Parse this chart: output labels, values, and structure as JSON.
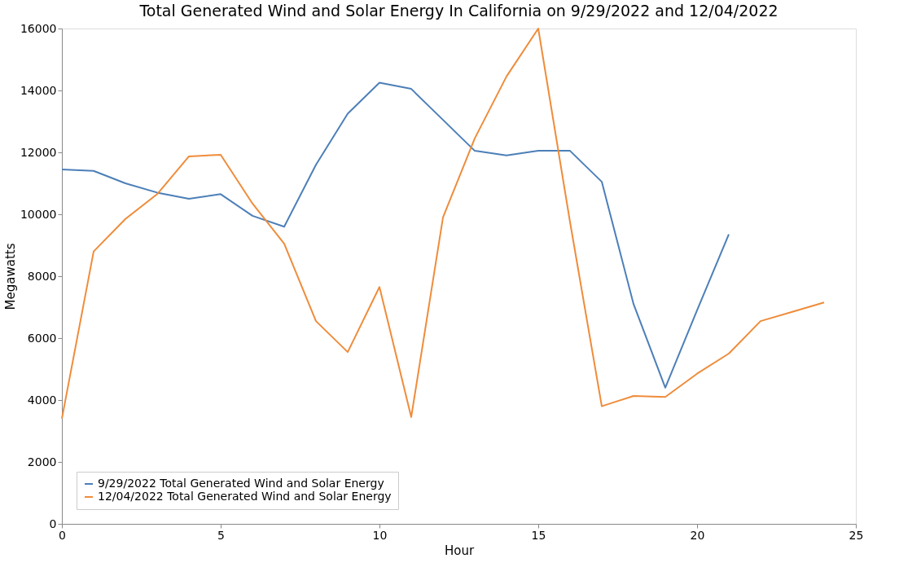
{
  "chart_data": {
    "type": "line",
    "title": "Total Generated Wind and Solar Energy In California on 9/29/2022 and 12/04/2022",
    "xlabel": "Hour",
    "ylabel": "Megawatts",
    "xlim": [
      0,
      25
    ],
    "xticks": [
      0,
      5,
      10,
      15,
      20,
      25
    ],
    "ylim": [
      0,
      16000
    ],
    "yticks": [
      0,
      2000,
      4000,
      6000,
      8000,
      10000,
      12000,
      14000,
      16000
    ],
    "grid": false,
    "legend": "bottom left",
    "marker": "none",
    "line_style": "solid",
    "series": [
      {
        "name": "9/29/2022 Total Generated Wind and Solar Energy",
        "color": "#4c7fb8",
        "x": [
          0,
          1,
          2,
          3,
          4,
          5,
          6,
          7,
          8,
          9,
          10,
          11,
          12,
          13,
          14,
          15,
          16,
          17,
          18,
          19,
          20,
          21
        ],
        "values": [
          11450,
          11400,
          11000,
          10700,
          10500,
          10650,
          9950,
          9600,
          11600,
          13250,
          14250,
          14050,
          13050,
          12050,
          11900,
          12050,
          12050,
          11050,
          7100,
          4400,
          6900,
          9350
        ]
      },
      {
        "name": "12/04/2022 Total Generated Wind and Solar Energy",
        "color": "#ef8c3b",
        "x": [
          0,
          1,
          2,
          3,
          4,
          5,
          6,
          7,
          8,
          9,
          10,
          11,
          12,
          13,
          14,
          15,
          16,
          17,
          18,
          19,
          20,
          21,
          22,
          23,
          24
        ],
        "values": [
          3400,
          8800,
          9850,
          10650,
          11870,
          11920,
          10350,
          9050,
          6550,
          5550,
          7650,
          3450,
          9900,
          12450,
          14450,
          16000,
          9750,
          3800,
          4130,
          4100,
          4850,
          5500,
          6550,
          6850,
          7150
        ]
      }
    ]
  }
}
